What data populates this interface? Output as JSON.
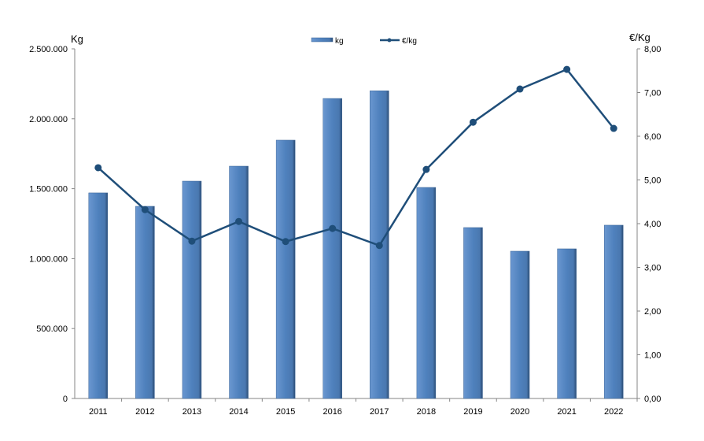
{
  "chart_data": {
    "type": "bar+line",
    "title": "",
    "categories": [
      "2011",
      "2012",
      "2013",
      "2014",
      "2015",
      "2016",
      "2017",
      "2018",
      "2019",
      "2020",
      "2021",
      "2022"
    ],
    "series": [
      {
        "name": "kg",
        "type": "bar",
        "axis": "left",
        "color": "#4f81bd",
        "values": [
          1470000,
          1374000,
          1554000,
          1661000,
          1847000,
          2145000,
          2200000,
          1509000,
          1222000,
          1053000,
          1070000,
          1239000
        ]
      },
      {
        "name": "€/kg",
        "type": "line",
        "axis": "right",
        "color": "#1f4e79",
        "values": [
          5.28,
          4.32,
          3.6,
          4.05,
          3.59,
          3.89,
          3.5,
          5.24,
          6.32,
          7.08,
          7.53,
          6.18
        ]
      }
    ],
    "ylabel": "Kg",
    "y2label": "€/Kg",
    "ylim": [
      0,
      2500000
    ],
    "y2lim": [
      0,
      8
    ],
    "yticks": [
      "0",
      "500.000",
      "1.000.000",
      "1.500.000",
      "2.000.000",
      "2.500.000"
    ],
    "y2ticks": [
      "0,00",
      "1,00",
      "2,00",
      "3,00",
      "4,00",
      "5,00",
      "6,00",
      "7,00",
      "8,00"
    ],
    "grid": false,
    "legend": "top-center"
  }
}
